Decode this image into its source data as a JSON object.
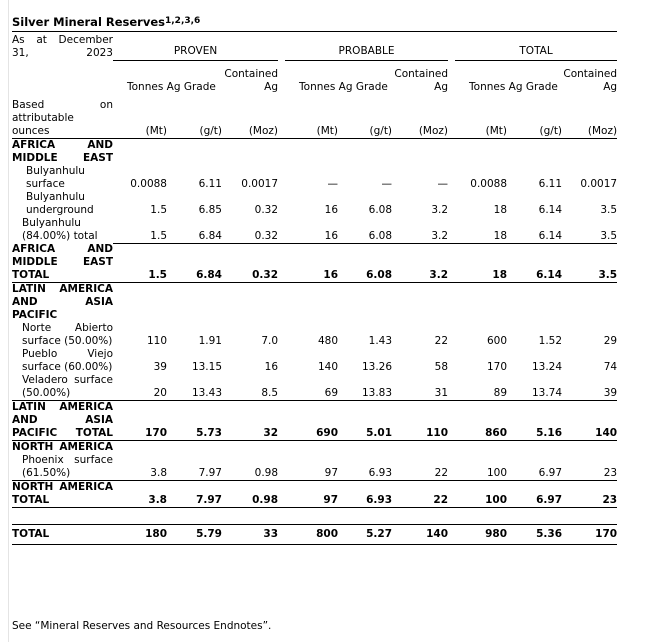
{
  "title": "Silver Mineral Reserves",
  "title_footnotes": "1,2,3,6",
  "header": {
    "as_at": "As at December 31, 2023",
    "groups": [
      "PROVEN",
      "PROBABLE",
      "TOTAL"
    ],
    "columns": [
      "Tonnes",
      "Ag Grade",
      "Contained Ag"
    ],
    "basis": "Based on attributable ounces",
    "units": [
      "(Mt)",
      "(g/t)",
      "(Moz)"
    ]
  },
  "rows": [
    {
      "type": "section",
      "label": "AFRICA AND MIDDLE EAST"
    },
    {
      "type": "item",
      "label": "Bulyanhulu surface",
      "values": [
        "0.0088",
        "6.11",
        "0.0017",
        "—",
        "—",
        "—",
        "0.0088",
        "6.11",
        "0.0017"
      ]
    },
    {
      "type": "item",
      "label": "Bulyanhulu underground",
      "values": [
        "1.5",
        "6.85",
        "0.32",
        "16",
        "6.08",
        "3.2",
        "18",
        "6.14",
        "3.5"
      ]
    },
    {
      "type": "subtotal",
      "label": "Bulyanhulu (84.00%) total",
      "values": [
        "1.5",
        "6.84",
        "0.32",
        "16",
        "6.08",
        "3.2",
        "18",
        "6.14",
        "3.5"
      ]
    },
    {
      "type": "total",
      "label": "AFRICA AND MIDDLE EAST TOTAL",
      "values": [
        "1.5",
        "6.84",
        "0.32",
        "16",
        "6.08",
        "3.2",
        "18",
        "6.14",
        "3.5"
      ]
    },
    {
      "type": "section",
      "label": "LATIN AMERICA AND ASIA PACIFIC"
    },
    {
      "type": "item2",
      "label": "Norte Abierto surface (50.00%)",
      "values": [
        "110",
        "1.91",
        "7.0",
        "480",
        "1.43",
        "22",
        "600",
        "1.52",
        "29"
      ]
    },
    {
      "type": "item2",
      "label": "Pueblo Viejo surface (60.00%)",
      "values": [
        "39",
        "13.15",
        "16",
        "140",
        "13.26",
        "58",
        "170",
        "13.24",
        "74"
      ]
    },
    {
      "type": "item2last",
      "label": "Veladero surface (50.00%)",
      "values": [
        "20",
        "13.43",
        "8.5",
        "69",
        "13.83",
        "31",
        "89",
        "13.74",
        "39"
      ]
    },
    {
      "type": "total",
      "label": "LATIN AMERICA AND ASIA PACIFIC TOTAL",
      "values": [
        "170",
        "5.73",
        "32",
        "690",
        "5.01",
        "110",
        "860",
        "5.16",
        "140"
      ]
    },
    {
      "type": "section",
      "label": "NORTH AMERICA"
    },
    {
      "type": "item2last",
      "label": "Phoenix surface (61.50%)",
      "values": [
        "3.8",
        "7.97",
        "0.98",
        "97",
        "6.93",
        "22",
        "100",
        "6.97",
        "23"
      ]
    },
    {
      "type": "total",
      "label": "NORTH AMERICA TOTAL",
      "values": [
        "3.8",
        "7.97",
        "0.98",
        "97",
        "6.93",
        "22",
        "100",
        "6.97",
        "23"
      ]
    },
    {
      "type": "spacer"
    },
    {
      "type": "grand",
      "label": "TOTAL",
      "values": [
        "180",
        "5.79",
        "33",
        "800",
        "5.27",
        "140",
        "980",
        "5.36",
        "170"
      ]
    }
  ],
  "footnote": "See “Mineral Reserves and Resources Endnotes”."
}
